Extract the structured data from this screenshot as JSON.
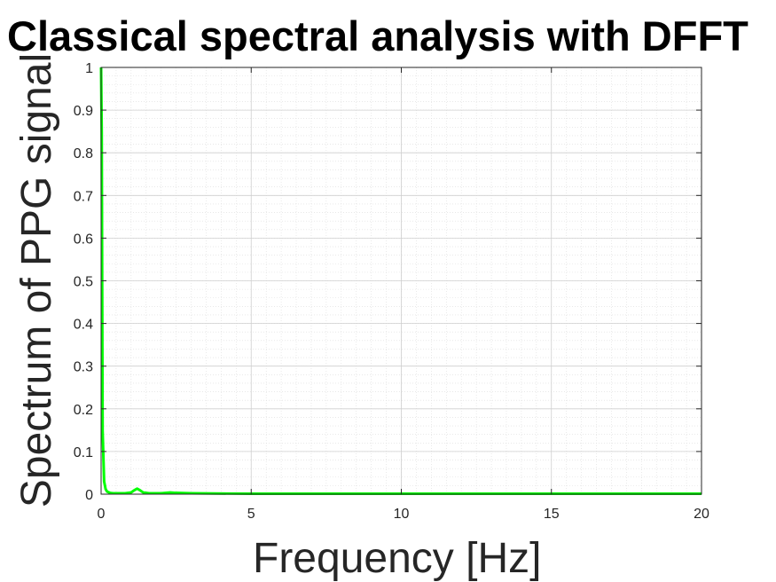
{
  "chart_data": {
    "type": "line",
    "title": "Classical spectral analysis with DFFT",
    "xlabel": "Frequency [Hz]",
    "ylabel": "Spectrum of PPG signal",
    "xlim": [
      0,
      20
    ],
    "ylim": [
      0,
      1
    ],
    "x_ticks": [
      0,
      5,
      10,
      15,
      20
    ],
    "x_tick_labels": [
      "0",
      "5",
      "10",
      "15",
      "20"
    ],
    "y_ticks": [
      0,
      0.1,
      0.2,
      0.3,
      0.4,
      0.5,
      0.6,
      0.7,
      0.8,
      0.9,
      1
    ],
    "y_tick_labels": [
      "0",
      "0.1",
      "0.2",
      "0.3",
      "0.4",
      "0.5",
      "0.6",
      "0.7",
      "0.8",
      "0.9",
      "1"
    ],
    "grid": true,
    "minor_grid": true,
    "series": [
      {
        "color": "#00ff00",
        "x": [
          0,
          0.02,
          0.05,
          0.1,
          0.15,
          0.2,
          0.3,
          0.4,
          0.6,
          0.8,
          1.0,
          1.1,
          1.2,
          1.3,
          1.4,
          1.6,
          2.0,
          2.3,
          2.5,
          3.0,
          5.0,
          8.0,
          10.0,
          15.0,
          20.0
        ],
        "y": [
          1.0,
          0.85,
          0.15,
          0.03,
          0.012,
          0.006,
          0.003,
          0.002,
          0.002,
          0.002,
          0.004,
          0.009,
          0.013,
          0.009,
          0.004,
          0.002,
          0.002,
          0.004,
          0.003,
          0.002,
          0.001,
          0.001,
          0.001,
          0.001,
          0.001
        ]
      }
    ]
  }
}
